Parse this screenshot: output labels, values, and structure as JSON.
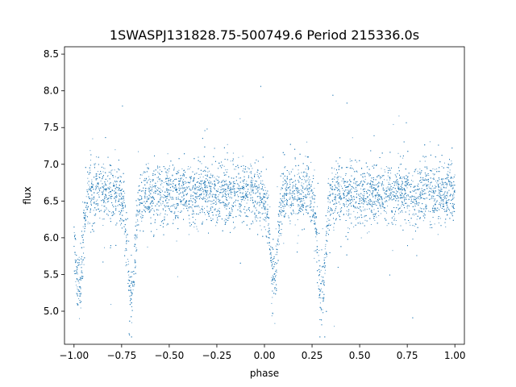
{
  "chart_data": {
    "type": "scatter",
    "title": "1SWASPJ131828.75-500749.6 Period 215336.0s",
    "xlabel": "phase",
    "ylabel": "flux",
    "xlim": [
      -1.05,
      1.05
    ],
    "ylim": [
      4.55,
      8.6
    ],
    "x_ticks": [
      -1.0,
      -0.75,
      -0.5,
      -0.25,
      0.0,
      0.25,
      0.5,
      0.75,
      1.0
    ],
    "x_tick_labels": [
      "−1.00",
      "−0.75",
      "−0.50",
      "−0.25",
      "0.00",
      "0.25",
      "0.50",
      "0.75",
      "1.00"
    ],
    "y_ticks": [
      5.0,
      5.5,
      6.0,
      6.5,
      7.0,
      7.5,
      8.0,
      8.5
    ],
    "y_tick_labels": [
      "5.0",
      "5.5",
      "6.0",
      "6.5",
      "7.0",
      "7.5",
      "8.0",
      "8.5"
    ],
    "grid": false,
    "point_color": "#1f77b4",
    "series": [
      {
        "x_range": [
          -1.0,
          1.0
        ],
        "baseline_flux": 6.6,
        "minima": [
          {
            "phase": -0.975,
            "flux": 5.3
          },
          {
            "phase": -0.7,
            "flux": 5.2
          },
          {
            "phase": 0.05,
            "flux": 5.4
          },
          {
            "phase": 0.3,
            "flux": 5.2
          }
        ]
      }
    ]
  }
}
